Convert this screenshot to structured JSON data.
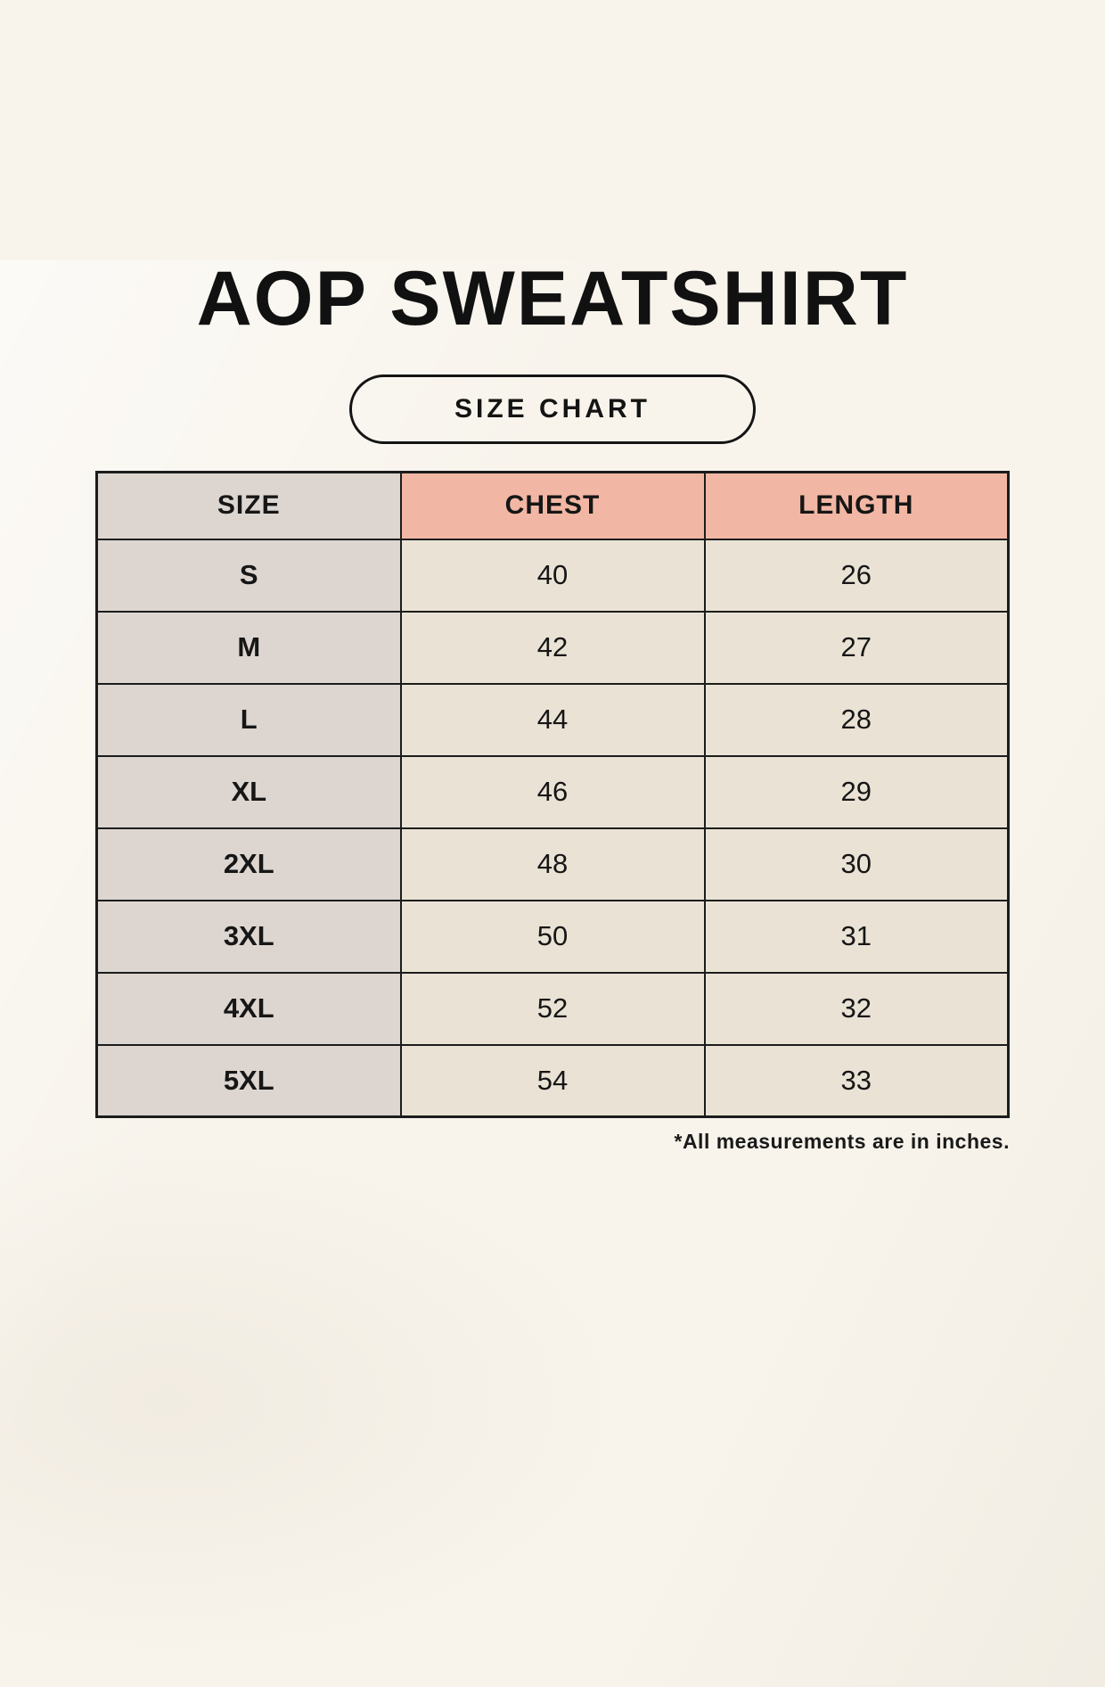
{
  "page": {
    "title": "AOP SWEATSHIRT",
    "badge_label": "SIZE CHART",
    "footnote": "*All measurements are in inches."
  },
  "chart_data": {
    "type": "table",
    "title": "AOP SWEATSHIRT",
    "subtitle": "SIZE CHART",
    "columns": [
      "SIZE",
      "CHEST",
      "LENGTH"
    ],
    "rows": [
      [
        "S",
        40,
        26
      ],
      [
        "M",
        42,
        27
      ],
      [
        "L",
        44,
        28
      ],
      [
        "XL",
        46,
        29
      ],
      [
        "2XL",
        48,
        30
      ],
      [
        "3XL",
        50,
        31
      ],
      [
        "4XL",
        52,
        32
      ],
      [
        "5XL",
        54,
        33
      ]
    ],
    "footnote": "*All measurements are in inches.",
    "units": "inches"
  },
  "colors": {
    "background": "#f8f4ec",
    "size_column_bg": "#ddd6d0",
    "accent_header_bg": "#f2b7a4",
    "data_cell_bg": "#eae3d5",
    "border": "#1c1c1c",
    "text": "#161616"
  }
}
